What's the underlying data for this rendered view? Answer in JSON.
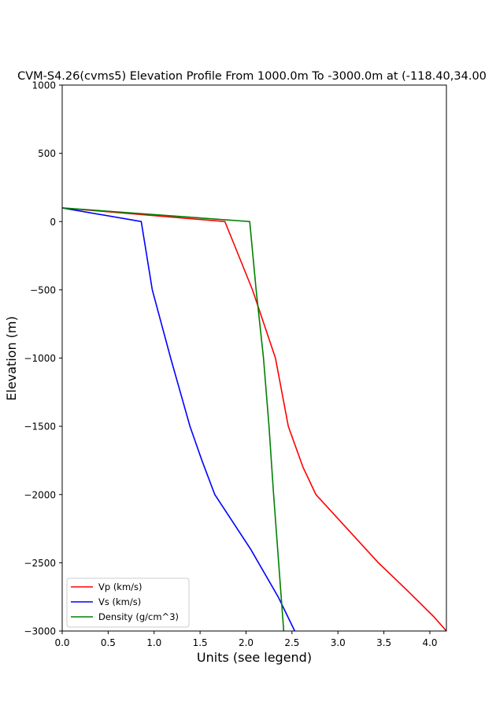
{
  "chart_data": {
    "type": "line",
    "title": "CVM-S4.26(cvms5) Elevation Profile From 1000.0m To -3000.0m at (-118.40,34.00",
    "xlabel": "Units (see legend)",
    "ylabel": "Elevation (m)",
    "xlim": [
      0.0,
      4.18
    ],
    "ylim": [
      -3000,
      1000
    ],
    "x_ticks": [
      "0.0",
      "0.5",
      "1.0",
      "1.5",
      "2.0",
      "2.5",
      "3.0",
      "3.5",
      "4.0"
    ],
    "y_ticks": [
      "1000",
      "500",
      "0",
      "−500",
      "−1000",
      "−1500",
      "−2000",
      "−2500",
      "−3000"
    ],
    "grid": false,
    "legend_position": "lower-left",
    "series": [
      {
        "name": "Vp (km/s)",
        "color": "#ff0000",
        "points": [
          [
            0.0,
            100
          ],
          [
            1.77,
            0
          ],
          [
            2.07,
            -500
          ],
          [
            2.32,
            -1000
          ],
          [
            2.46,
            -1500
          ],
          [
            2.62,
            -1800
          ],
          [
            2.76,
            -2000
          ],
          [
            3.1,
            -2250
          ],
          [
            3.44,
            -2500
          ],
          [
            3.75,
            -2700
          ],
          [
            4.05,
            -2900
          ],
          [
            4.18,
            -3000
          ]
        ]
      },
      {
        "name": "Vs (km/s)",
        "color": "#0000ff",
        "points": [
          [
            0.0,
            100
          ],
          [
            0.86,
            0
          ],
          [
            0.98,
            -500
          ],
          [
            1.18,
            -1000
          ],
          [
            1.39,
            -1500
          ],
          [
            1.52,
            -1750
          ],
          [
            1.66,
            -2000
          ],
          [
            2.05,
            -2400
          ],
          [
            2.35,
            -2750
          ],
          [
            2.53,
            -3000
          ]
        ]
      },
      {
        "name": "Density (g/cm^3)",
        "color": "#008000",
        "points": [
          [
            0.0,
            100
          ],
          [
            2.04,
            0
          ],
          [
            2.11,
            -500
          ],
          [
            2.19,
            -1000
          ],
          [
            2.25,
            -1500
          ],
          [
            2.3,
            -2000
          ],
          [
            2.41,
            -3000
          ]
        ]
      }
    ]
  }
}
